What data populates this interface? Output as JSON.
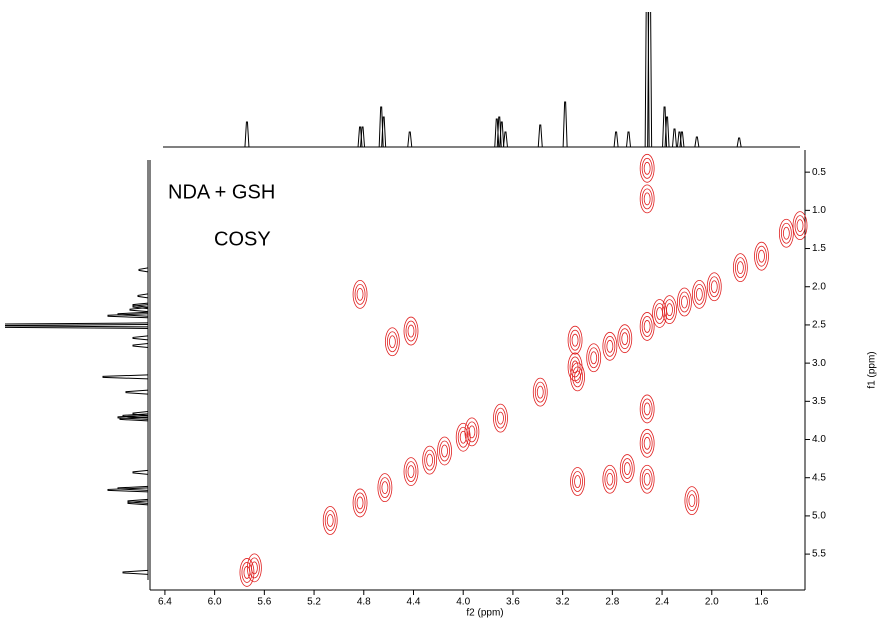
{
  "chart_data": {
    "type": "contour",
    "annotations": [
      "NDA + GSH",
      "COSY"
    ],
    "xlabel": "f2 (ppm)",
    "ylabel": "f1 (ppm)",
    "xlim": [
      6.52,
      1.25
    ],
    "xticks": [
      6.4,
      {
        "value": 6,
        "label": "6.0"
      },
      5.6,
      5.2,
      4.8,
      4.4,
      {
        "value": 4,
        "label": "4.0"
      },
      3.6,
      3.2,
      2.8,
      2.4,
      {
        "value": 2,
        "label": "2.0"
      },
      1.6
    ],
    "ylim": [
      0.21,
      5.97
    ],
    "yticks": [
      0.5,
      {
        "value": 1,
        "label": "1.0"
      },
      1.5,
      {
        "value": 2,
        "label": "2.0"
      },
      2.5,
      {
        "value": 3,
        "label": "3.0"
      },
      3.5,
      {
        "value": 4,
        "label": "4.0"
      },
      4.5,
      {
        "value": 5,
        "label": "5.0"
      },
      5.5
    ],
    "color": "#e02020",
    "peaks": {
      "x": [
        5.74,
        5.68,
        5.07,
        4.83,
        4.63,
        4.42,
        4.27,
        4.15,
        4.0,
        3.93,
        3.7,
        3.38,
        3.1,
        3.08,
        2.95,
        2.82,
        2.7,
        2.52,
        2.42,
        2.34,
        2.22,
        2.1,
        1.98,
        1.77,
        1.6,
        1.4,
        1.29,
        4.83,
        4.57,
        4.42,
        3.1,
        2.82,
        2.68,
        3.08,
        2.52,
        2.16,
        2.52,
        2.52,
        2.52,
        2.52
      ],
      "y": [
        5.74,
        5.68,
        5.06,
        4.83,
        4.63,
        4.42,
        4.27,
        4.15,
        3.97,
        3.9,
        3.72,
        3.38,
        3.05,
        3.18,
        2.93,
        2.78,
        2.68,
        2.52,
        2.35,
        2.3,
        2.2,
        2.1,
        2.0,
        1.75,
        1.6,
        1.3,
        1.2,
        2.1,
        2.72,
        2.58,
        2.7,
        4.52,
        4.38,
        4.55,
        4.52,
        4.8,
        0.45,
        0.85,
        3.6,
        4.05
      ]
    },
    "projection": {
      "ppm": [
        5.74,
        4.83,
        4.81,
        4.66,
        4.64,
        4.43,
        3.73,
        3.71,
        3.69,
        3.66,
        3.38,
        3.18,
        2.77,
        2.67,
        2.52,
        2.5,
        2.38,
        2.36,
        2.3,
        2.26,
        2.24,
        2.12,
        1.78
      ],
      "intensity": [
        0.25,
        0.2,
        0.2,
        0.4,
        0.3,
        0.15,
        0.28,
        0.3,
        0.25,
        0.15,
        0.22,
        0.45,
        0.15,
        0.15,
        2,
        2,
        0.4,
        0.3,
        0.18,
        0.15,
        0.15,
        0.1,
        0.09
      ]
    },
    "projection_color": "#000000"
  }
}
